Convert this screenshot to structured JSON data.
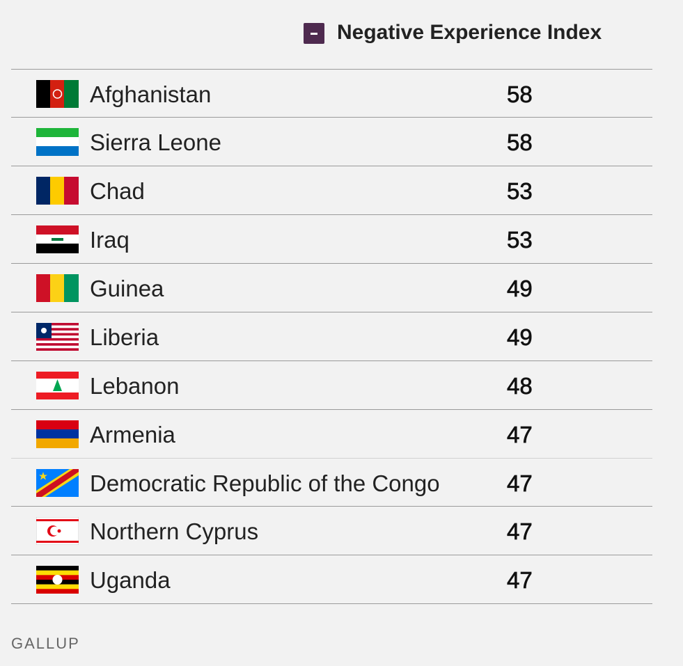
{
  "header": {
    "title": "Negative Experience Index"
  },
  "table": {
    "rows": [
      [
        "Afghanistan",
        "58"
      ],
      [
        "Sierra Leone",
        "58"
      ],
      [
        "Chad",
        "53"
      ],
      [
        "Iraq",
        "53"
      ],
      [
        "Guinea",
        "49"
      ],
      [
        "Liberia",
        "49"
      ],
      [
        "Lebanon",
        "48"
      ],
      [
        "Armenia",
        "47"
      ],
      [
        "Democratic Republic of the Congo",
        "47"
      ],
      [
        "Northern Cyprus",
        "47"
      ],
      [
        "Uganda",
        "47"
      ]
    ]
  },
  "footer": {
    "source": "GALLUP"
  }
}
